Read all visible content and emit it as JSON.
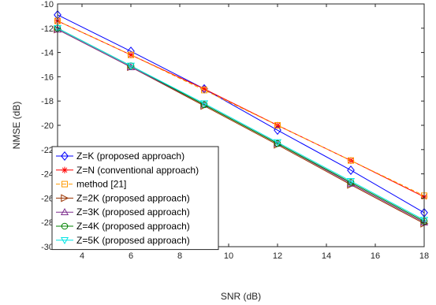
{
  "chart_data": {
    "type": "line",
    "title": "",
    "xlabel": "SNR (dB)",
    "ylabel": "NMSE (dB)",
    "xlim": [
      3,
      18
    ],
    "ylim": [
      -30,
      -10
    ],
    "xticks": [
      4,
      6,
      8,
      10,
      12,
      14,
      16,
      18
    ],
    "yticks": [
      -30,
      -28,
      -26,
      -24,
      -22,
      -20,
      -18,
      -16,
      -14,
      -12,
      -10
    ],
    "grid": false,
    "legend_position": "bottom-left",
    "x": [
      3,
      6,
      9,
      12,
      15,
      18
    ],
    "series": [
      {
        "name": "Z=K (proposed approach)",
        "color": "#0000ff",
        "marker": "diamond",
        "dash": "solid",
        "values": [
          -10.9,
          -13.9,
          -17.0,
          -20.4,
          -23.7,
          -27.2
        ]
      },
      {
        "name": "Z=N (conventional approach)",
        "color": "#ff0000",
        "marker": "asterisk",
        "dash": "solid",
        "values": [
          -11.4,
          -14.2,
          -17.0,
          -20.0,
          -22.9,
          -25.9
        ]
      },
      {
        "name": "method [21]",
        "color": "#ff9900",
        "marker": "square",
        "dash": "dashed",
        "values": [
          -11.4,
          -14.2,
          -17.1,
          -20.0,
          -22.9,
          -25.8
        ]
      },
      {
        "name": "Z=2K (proposed approach)",
        "color": "#993300",
        "marker": "triangle-right",
        "dash": "solid",
        "values": [
          -12.1,
          -15.2,
          -18.4,
          -21.6,
          -24.9,
          -28.1
        ]
      },
      {
        "name": "Z=3K (proposed approach)",
        "color": "#7e2f8e",
        "marker": "triangle-up",
        "dash": "solid",
        "values": [
          -12.1,
          -15.2,
          -18.3,
          -21.5,
          -24.8,
          -28.0
        ]
      },
      {
        "name": "Z=4K (proposed approach)",
        "color": "#008000",
        "marker": "circle",
        "dash": "solid",
        "values": [
          -12.0,
          -15.1,
          -18.3,
          -21.5,
          -24.7,
          -27.9
        ]
      },
      {
        "name": "Z=5K (proposed approach)",
        "color": "#00e5e5",
        "marker": "triangle-down",
        "dash": "solid",
        "values": [
          -12.0,
          -15.1,
          -18.2,
          -21.4,
          -24.6,
          -27.8
        ]
      }
    ]
  }
}
